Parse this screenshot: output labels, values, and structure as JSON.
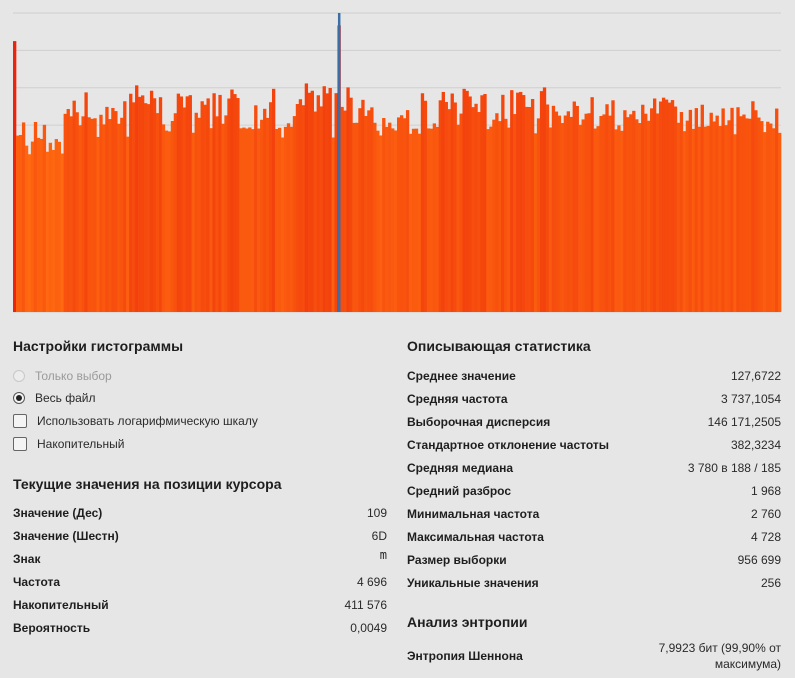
{
  "chart_data": {
    "type": "bar",
    "categories_range": [
      0,
      255
    ],
    "cursor_value": 109,
    "ylim": [
      2300,
      4800
    ],
    "gridlines": 8,
    "grid": true,
    "colors": {
      "bar_high": "#e81c0a",
      "bar_low": "#ff6a10",
      "cursor": "#3a6ea5",
      "background": "#e6e6e6",
      "grid": "#cfcfcf"
    },
    "values": [
      4565,
      3775,
      3780,
      3885,
      3691,
      3619,
      3725,
      3889,
      3756,
      3747,
      3865,
      3640,
      3715,
      3655,
      3746,
      3723,
      3625,
      3957,
      3997,
      3936,
      4067,
      3970,
      3861,
      3936,
      4136,
      3928,
      3915,
      3920,
      3764,
      3949,
      3869,
      4015,
      3913,
      4006,
      3980,
      3874,
      3924,
      4062,
      3766,
      4125,
      4053,
      4195,
      4099,
      4111,
      4046,
      4038,
      4150,
      4087,
      3963,
      4096,
      3869,
      3817,
      3810,
      3897,
      3962,
      4126,
      4102,
      4010,
      4103,
      4113,
      3799,
      3966,
      3924,
      4062,
      4033,
      4086,
      3837,
      4129,
      3936,
      4115,
      3874,
      3944,
      4085,
      4160,
      4122,
      4089,
      3836,
      3842,
      3834,
      3843,
      3829,
      4028,
      3834,
      3907,
      3999,
      3923,
      4054,
      4166,
      3830,
      3840,
      3759,
      3848,
      3878,
      3849,
      3938,
      4039,
      4079,
      4029,
      4211,
      4133,
      4150,
      3976,
      4112,
      4019,
      4188,
      4128,
      4173,
      3759,
      4130,
      4696,
      4015,
      3984,
      4178,
      4092,
      3881,
      3882,
      4004,
      4074,
      3939,
      3986,
      4011,
      3882,
      3816,
      3776,
      3922,
      3848,
      3883,
      3835,
      3818,
      3927,
      3945,
      3920,
      3988,
      3790,
      3832,
      3833,
      3791,
      4129,
      4066,
      3835,
      3833,
      3877,
      3848,
      4070,
      4140,
      4056,
      3996,
      4127,
      4052,
      3866,
      3959,
      4166,
      4149,
      4102,
      4013,
      4041,
      3972,
      4112,
      4123,
      3829,
      3850,
      3908,
      3962,
      3896,
      4116,
      3915,
      3842,
      4155,
      3955,
      4134,
      4140,
      4114,
      4015,
      4014,
      4081,
      3794,
      3919,
      4147,
      4178,
      4035,
      3843,
      4024,
      3976,
      3942,
      3880,
      3943,
      3978,
      3931,
      4060,
      4023,
      3865,
      3910,
      3958,
      3962,
      4096,
      3834,
      3854,
      3939,
      3952,
      4037,
      3942,
      4070,
      3827,
      3860,
      3815,
      3987,
      3929,
      3953,
      3982,
      3911,
      3880,
      4033,
      3958,
      3899,
      4003,
      4085,
      3960,
      4060,
      4092,
      4076,
      4051,
      4072,
      4018,
      3882,
      3972,
      3812,
      3900,
      3990,
      3831,
      4005,
      3849,
      4033,
      3850,
      3856,
      3966,
      3893,
      3942,
      3855,
      4002,
      3862,
      3903,
      4007,
      3786,
      4012,
      3937,
      3951,
      3919,
      3916,
      4062,
      3987,
      3926,
      3896,
      3804,
      3891,
      3876,
      3836,
      4001,
      3798
    ]
  },
  "histogram_settings": {
    "title": "Настройки гистограммы",
    "selection_only": "Только выбор",
    "whole_file": "Весь файл",
    "log_scale": "Использовать логарифмическую шкалу",
    "cumulative": "Накопительный"
  },
  "cursor_values": {
    "title": "Текущие значения на позиции курсора",
    "rows": [
      {
        "label": "Значение (Дес)",
        "value": "109"
      },
      {
        "label": "Значение (Шестн)",
        "value": "6D"
      },
      {
        "label": "Знак",
        "value": "m"
      },
      {
        "label": "Частота",
        "value": "4 696"
      },
      {
        "label": "Накопительный",
        "value": "411 576"
      },
      {
        "label": "Вероятность",
        "value": "0,0049"
      }
    ]
  },
  "statistics": {
    "title": "Описывающая статистика",
    "rows": [
      {
        "label": "Среднее значение",
        "value": "127,6722"
      },
      {
        "label": "Средняя частота",
        "value": "3 737,1054"
      },
      {
        "label": "Выборочная дисперсия",
        "value": "146 171,2505"
      },
      {
        "label": "Стандартное отклонение частоты",
        "value": "382,3234"
      },
      {
        "label": "Средняя медиана",
        "value": "3 780 в 188 / 185"
      },
      {
        "label": "Средний разброс",
        "value": "1 968"
      },
      {
        "label": "Минимальная частота",
        "value": "2 760"
      },
      {
        "label": "Максимальная частота",
        "value": "4 728"
      },
      {
        "label": "Размер выборки",
        "value": "956 699"
      },
      {
        "label": "Уникальные значения",
        "value": "256"
      }
    ]
  },
  "entropy": {
    "title": "Анализ энтропии",
    "label": "Энтропия Шеннона",
    "value": "7,9923 бит (99,90% от максимума)"
  }
}
